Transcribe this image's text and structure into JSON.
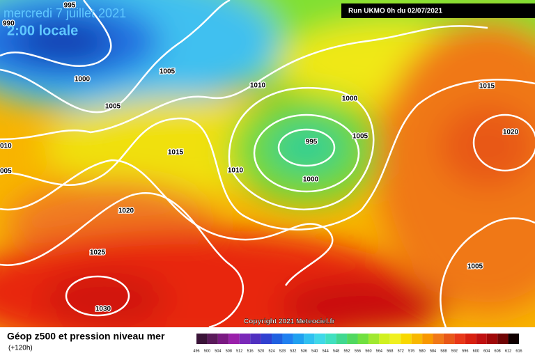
{
  "header": {
    "title": "mercredi 7 juillet 2021",
    "subtitle": "2:00 locale",
    "run": "Run UKMO 0h du 02/07/2021",
    "copyright": "Copyright 2021 Meteociel.fr"
  },
  "isobars": [
    "995",
    "1000",
    "1005",
    "1005",
    "1010",
    "1000",
    "995",
    "1000",
    "1005",
    "1010",
    "1015",
    "1020",
    "1025",
    "1030",
    "1015",
    "1020",
    "1005",
    "990",
    "010",
    "005"
  ],
  "legend": {
    "title": "Géop z500 et pression niveau mer",
    "lead": "(+120h)",
    "scale": [
      496,
      500,
      504,
      508,
      512,
      516,
      520,
      524,
      528,
      532,
      536,
      540,
      544,
      548,
      552,
      556,
      560,
      564,
      568,
      572,
      576,
      580,
      584,
      588,
      592,
      596,
      600,
      604,
      608,
      612,
      616
    ],
    "colors": [
      "#3a1438",
      "#5a1a5a",
      "#7a1a82",
      "#9a20aa",
      "#7a28b8",
      "#5030c0",
      "#3040d0",
      "#2060e0",
      "#2080f0",
      "#20a0f0",
      "#30c0f0",
      "#40d8e8",
      "#40e0c0",
      "#40d890",
      "#50d860",
      "#70e040",
      "#a0e830",
      "#d0f020",
      "#f0f020",
      "#f8d800",
      "#f8b800",
      "#f89800",
      "#f07818",
      "#e85818",
      "#e83818",
      "#d82010",
      "#c01010",
      "#a00808",
      "#700505",
      "#100000"
    ]
  }
}
